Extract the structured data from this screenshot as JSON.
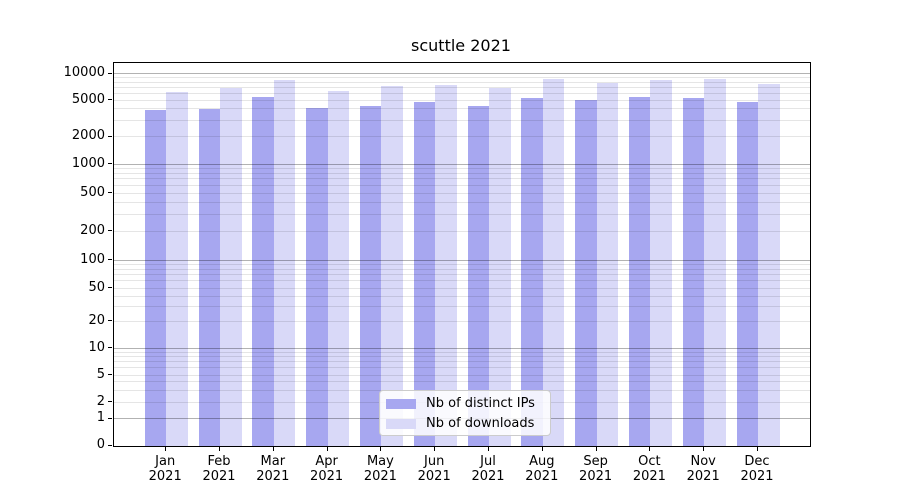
{
  "title": "scuttle 2021",
  "legend": {
    "position": "lower center",
    "items": [
      {
        "label": "Nb of distinct IPs",
        "color": "#a7a7f0"
      },
      {
        "label": "Nb of downloads",
        "color": "#d9d9f8"
      }
    ]
  },
  "chart_data": {
    "type": "bar",
    "title": "scuttle 2021",
    "categories": [
      "Jan",
      "Feb",
      "Mar",
      "Apr",
      "May",
      "Jun",
      "Jul",
      "Aug",
      "Sep",
      "Oct",
      "Nov",
      "Dec"
    ],
    "category_year": "2021",
    "series": [
      {
        "name": "Nb of distinct IPs",
        "color": "#a7a7f0",
        "values": [
          3900,
          4000,
          5400,
          4050,
          4350,
          4750,
          4300,
          5300,
          5050,
          5350,
          5250,
          4700
        ]
      },
      {
        "name": "Nb of downloads",
        "color": "#d9d9f8",
        "values": [
          6100,
          6900,
          8400,
          6300,
          7200,
          7350,
          6800,
          8750,
          7700,
          8400,
          8600,
          7550
        ]
      }
    ],
    "xlabel": "",
    "ylabel": "",
    "yscale": "symlog",
    "yticks": [
      0,
      1,
      2,
      5,
      10,
      20,
      50,
      100,
      200,
      500,
      1000,
      2000,
      5000,
      10000
    ],
    "ylim": [
      0,
      13000
    ],
    "grid": "both",
    "grid_above_bars": true,
    "legend_position": "lower center"
  }
}
